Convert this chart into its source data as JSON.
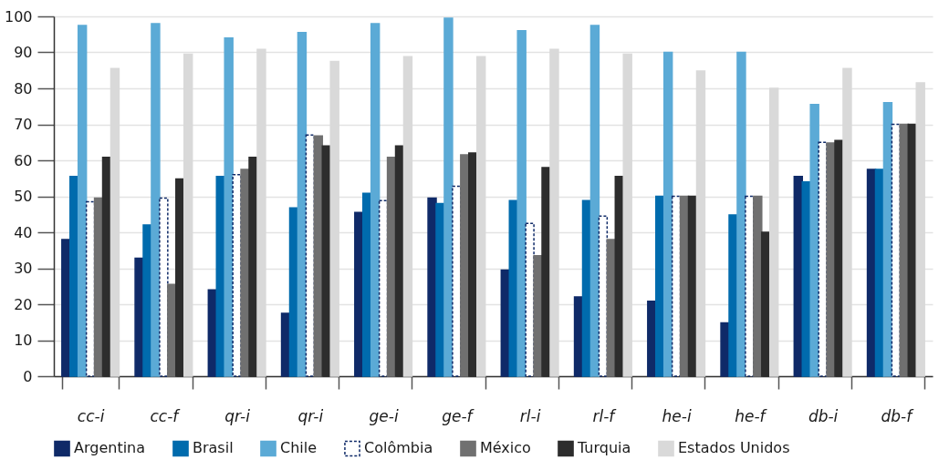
{
  "chart_data": {
    "type": "bar",
    "categories": [
      "cc-i",
      "cc-f",
      "qr-i",
      "qr-i",
      "ge-i",
      "ge-f",
      "rl-i",
      "rl-f",
      "he-i",
      "he-f",
      "db-i",
      "db-f"
    ],
    "series": [
      {
        "name": "Argentina",
        "color": "#0f2a68",
        "values": [
          38,
          32.8,
          24,
          17.5,
          45.5,
          49.5,
          29.5,
          22,
          20.8,
          14.8,
          55.5,
          57.5
        ]
      },
      {
        "name": "Brasil",
        "color": "#006bad",
        "values": [
          55.5,
          42,
          55.5,
          46.8,
          50.8,
          48,
          48.8,
          48.8,
          50,
          44.8,
          54,
          57.5
        ]
      },
      {
        "name": "Chile",
        "color": "#5baad6",
        "values": [
          97.5,
          98,
          94,
          95.5,
          98,
          99.5,
          96,
          97.5,
          90,
          90,
          75.5,
          76
        ]
      },
      {
        "name": "Colômbia",
        "color": "#0f2a68",
        "line_style": "dashed",
        "values": [
          48.5,
          49.5,
          56,
          67,
          48.8,
          52.8,
          42.5,
          44.5,
          50,
          50,
          65,
          70
        ]
      },
      {
        "name": "México",
        "color": "#707070",
        "values": [
          49.5,
          25.5,
          57.5,
          66.8,
          60.8,
          61.5,
          33.5,
          38,
          50,
          50,
          64.8,
          70
        ]
      },
      {
        "name": "Turquia",
        "color": "#2d2d2d",
        "values": [
          60.8,
          54.8,
          60.8,
          64,
          64,
          62,
          58,
          55.5,
          50,
          40,
          65.5,
          70
        ]
      },
      {
        "name": "Estados Unidos",
        "color": "#d9d9d9",
        "values": [
          85.5,
          89.5,
          90.8,
          87.5,
          88.8,
          88.8,
          90.8,
          89.5,
          84.8,
          80,
          85.5,
          81.5
        ]
      }
    ],
    "ylim": [
      0,
      100
    ],
    "yticks": [
      0,
      10,
      20,
      30,
      40,
      50,
      60,
      70,
      80,
      90,
      100
    ],
    "grid": "y",
    "legend": "bottom"
  }
}
